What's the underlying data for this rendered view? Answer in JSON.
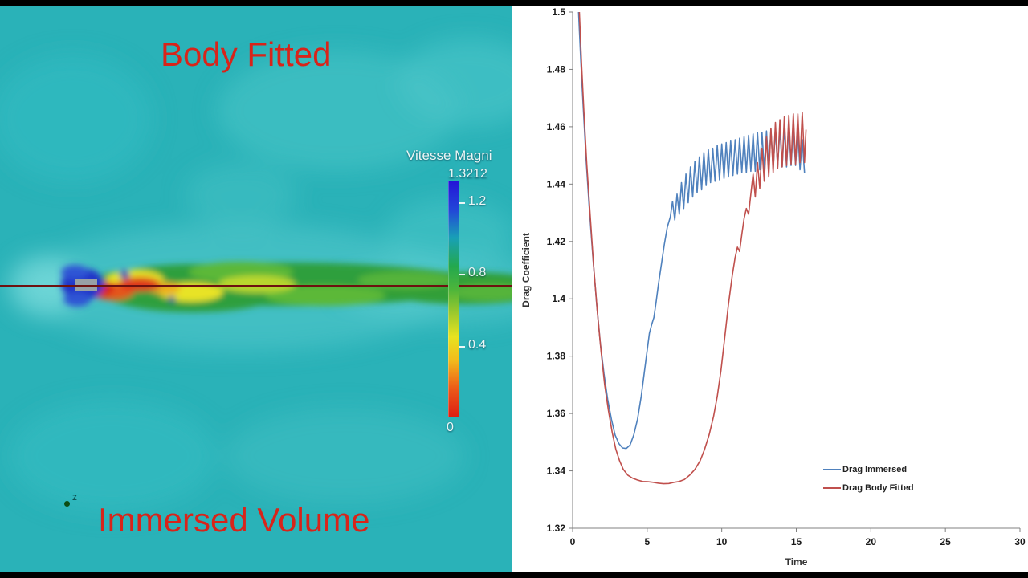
{
  "frame": {
    "background": "#000000"
  },
  "cfd_panel": {
    "label_top": "Body Fitted",
    "label_bottom": "Immersed Volume",
    "label_color": "#d8241a",
    "background": "#2ab2b8",
    "axis_marker": "z",
    "colorbar": {
      "title": "Vitesse Magni",
      "max_label": "1.3212",
      "ticks": [
        "1.2",
        "0.8",
        "0.4"
      ],
      "min_label": "0",
      "gradient": [
        "#2415d8 0%",
        "#2246d8 12%",
        "#18a0b6 24%",
        "#23a84e 36%",
        "#4db53a 46%",
        "#9cc92e 56%",
        "#e8e320 66%",
        "#f2bc1c 76%",
        "#ec5a18 88%",
        "#dd1f14 100%"
      ]
    }
  },
  "chart_data": {
    "type": "line",
    "title": "",
    "xlabel": "Time",
    "ylabel": "Drag Coefficient",
    "xlim": [
      0,
      30
    ],
    "ylim": [
      1.32,
      1.5
    ],
    "xticks": [
      "0",
      "5",
      "10",
      "15",
      "20",
      "25",
      "30"
    ],
    "yticks": [
      "1.32",
      "1.34",
      "1.36",
      "1.38",
      "1.4",
      "1.42",
      "1.44",
      "1.46",
      "1.48",
      "1.5"
    ],
    "grid": false,
    "legend_position": "inside-bottom-right",
    "axis_color": "#808080",
    "series": [
      {
        "name": "Drag Immersed",
        "color": "#4f81bd",
        "points": [
          [
            0.4,
            1.5
          ],
          [
            0.55,
            1.483
          ],
          [
            0.7,
            1.468
          ],
          [
            0.9,
            1.449
          ],
          [
            1.1,
            1.433
          ],
          [
            1.35,
            1.415
          ],
          [
            1.6,
            1.399
          ],
          [
            1.85,
            1.385
          ],
          [
            2.1,
            1.374
          ],
          [
            2.35,
            1.365
          ],
          [
            2.6,
            1.358
          ],
          [
            2.85,
            1.3525
          ],
          [
            3.1,
            1.3495
          ],
          [
            3.35,
            1.348
          ],
          [
            3.6,
            1.3478
          ],
          [
            3.85,
            1.349
          ],
          [
            4.1,
            1.3525
          ],
          [
            4.35,
            1.358
          ],
          [
            4.6,
            1.366
          ],
          [
            4.8,
            1.374
          ],
          [
            5.0,
            1.382
          ],
          [
            5.15,
            1.388
          ],
          [
            5.3,
            1.391
          ],
          [
            5.45,
            1.3935
          ],
          [
            5.6,
            1.399
          ],
          [
            5.75,
            1.405
          ],
          [
            5.95,
            1.412
          ],
          [
            6.15,
            1.419
          ],
          [
            6.35,
            1.425
          ],
          [
            6.55,
            1.4285
          ],
          [
            6.7,
            1.434
          ],
          [
            6.85,
            1.4275
          ],
          [
            7.0,
            1.4365
          ],
          [
            7.15,
            1.4295
          ],
          [
            7.3,
            1.4405
          ],
          [
            7.45,
            1.4315
          ],
          [
            7.6,
            1.4435
          ],
          [
            7.75,
            1.4335
          ],
          [
            7.9,
            1.446
          ],
          [
            8.05,
            1.4355
          ],
          [
            8.2,
            1.448
          ],
          [
            8.35,
            1.437
          ],
          [
            8.5,
            1.4495
          ],
          [
            8.65,
            1.438
          ],
          [
            8.8,
            1.451
          ],
          [
            8.95,
            1.4395
          ],
          [
            9.1,
            1.452
          ],
          [
            9.25,
            1.4405
          ],
          [
            9.4,
            1.4525
          ],
          [
            9.55,
            1.441
          ],
          [
            9.7,
            1.4535
          ],
          [
            9.85,
            1.4415
          ],
          [
            10.0,
            1.454
          ],
          [
            10.15,
            1.442
          ],
          [
            10.3,
            1.4545
          ],
          [
            10.45,
            1.4425
          ],
          [
            10.6,
            1.455
          ],
          [
            10.75,
            1.443
          ],
          [
            10.9,
            1.4555
          ],
          [
            11.05,
            1.4435
          ],
          [
            11.2,
            1.456
          ],
          [
            11.35,
            1.444
          ],
          [
            11.5,
            1.4565
          ],
          [
            11.65,
            1.444
          ],
          [
            11.8,
            1.457
          ],
          [
            11.95,
            1.4445
          ],
          [
            12.1,
            1.4575
          ],
          [
            12.25,
            1.4445
          ],
          [
            12.4,
            1.458
          ],
          [
            12.55,
            1.445
          ],
          [
            12.7,
            1.458
          ],
          [
            12.85,
            1.445
          ],
          [
            13.0,
            1.4585
          ],
          [
            13.15,
            1.4455
          ],
          [
            13.3,
            1.459
          ],
          [
            13.45,
            1.4455
          ],
          [
            13.6,
            1.459
          ],
          [
            13.75,
            1.446
          ],
          [
            13.9,
            1.4595
          ],
          [
            14.05,
            1.446
          ],
          [
            14.2,
            1.46
          ],
          [
            14.35,
            1.446
          ],
          [
            14.5,
            1.46
          ],
          [
            14.65,
            1.4465
          ],
          [
            14.8,
            1.4595
          ],
          [
            14.95,
            1.4465
          ],
          [
            15.1,
            1.459
          ],
          [
            15.25,
            1.445
          ],
          [
            15.4,
            1.4555
          ],
          [
            15.55,
            1.444
          ]
        ]
      },
      {
        "name": "Drag Body Fitted",
        "color": "#c0504d",
        "points": [
          [
            0.45,
            1.5
          ],
          [
            0.6,
            1.482
          ],
          [
            0.75,
            1.466
          ],
          [
            0.95,
            1.447
          ],
          [
            1.15,
            1.431
          ],
          [
            1.4,
            1.412
          ],
          [
            1.65,
            1.396
          ],
          [
            1.9,
            1.382
          ],
          [
            2.15,
            1.37
          ],
          [
            2.4,
            1.361
          ],
          [
            2.65,
            1.3535
          ],
          [
            2.9,
            1.3475
          ],
          [
            3.15,
            1.3435
          ],
          [
            3.4,
            1.3405
          ],
          [
            3.7,
            1.3385
          ],
          [
            4.0,
            1.3375
          ],
          [
            4.35,
            1.3368
          ],
          [
            4.7,
            1.3363
          ],
          [
            5.05,
            1.3362
          ],
          [
            5.4,
            1.336
          ],
          [
            5.75,
            1.3357
          ],
          [
            6.1,
            1.3355
          ],
          [
            6.45,
            1.3356
          ],
          [
            6.8,
            1.336
          ],
          [
            7.15,
            1.3363
          ],
          [
            7.5,
            1.337
          ],
          [
            7.85,
            1.3385
          ],
          [
            8.2,
            1.3405
          ],
          [
            8.55,
            1.3435
          ],
          [
            8.85,
            1.3475
          ],
          [
            9.15,
            1.3525
          ],
          [
            9.45,
            1.359
          ],
          [
            9.7,
            1.366
          ],
          [
            9.95,
            1.375
          ],
          [
            10.2,
            1.3865
          ],
          [
            10.45,
            1.398
          ],
          [
            10.7,
            1.408
          ],
          [
            10.9,
            1.4145
          ],
          [
            11.05,
            1.418
          ],
          [
            11.2,
            1.4165
          ],
          [
            11.35,
            1.4225
          ],
          [
            11.5,
            1.428
          ],
          [
            11.65,
            1.4315
          ],
          [
            11.8,
            1.4295
          ],
          [
            11.95,
            1.4365
          ],
          [
            12.1,
            1.4435
          ],
          [
            12.25,
            1.4355
          ],
          [
            12.4,
            1.4475
          ],
          [
            12.55,
            1.4385
          ],
          [
            12.7,
            1.4525
          ],
          [
            12.85,
            1.441
          ],
          [
            13.0,
            1.4565
          ],
          [
            13.15,
            1.4425
          ],
          [
            13.3,
            1.4595
          ],
          [
            13.45,
            1.444
          ],
          [
            13.6,
            1.4615
          ],
          [
            13.75,
            1.4455
          ],
          [
            13.9,
            1.4625
          ],
          [
            14.05,
            1.446
          ],
          [
            14.2,
            1.4635
          ],
          [
            14.35,
            1.4465
          ],
          [
            14.5,
            1.464
          ],
          [
            14.65,
            1.447
          ],
          [
            14.8,
            1.4645
          ],
          [
            14.95,
            1.447
          ],
          [
            15.1,
            1.4645
          ],
          [
            15.25,
            1.4475
          ],
          [
            15.4,
            1.465
          ],
          [
            15.55,
            1.4475
          ],
          [
            15.65,
            1.459
          ]
        ]
      }
    ]
  }
}
